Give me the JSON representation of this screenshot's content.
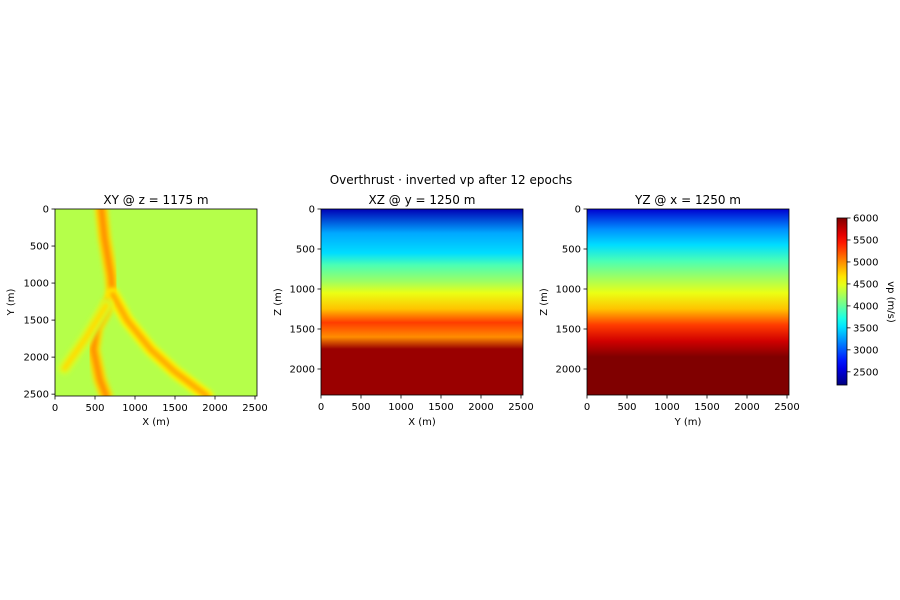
{
  "suptitle": "Overthrust · inverted vp after 12 epochs",
  "chart_data": [
    {
      "type": "heatmap",
      "title": "XY @ z = 1175 m",
      "xlabel": "X (m)",
      "ylabel": "Y (m)",
      "xlim": [
        0,
        2525
      ],
      "ylim": [
        2525,
        0
      ],
      "xticks": [
        0,
        500,
        1000,
        1500,
        2000,
        2500
      ],
      "yticks": [
        0,
        500,
        1000,
        1500,
        2000,
        2500
      ],
      "background_vp": 4300,
      "features": [
        {
          "kind": "channel",
          "vp": 5000,
          "path": [
            [
              580,
              0
            ],
            [
              620,
              400
            ],
            [
              700,
              900
            ],
            [
              720,
              1150
            ],
            [
              620,
              1400
            ],
            [
              520,
              1600
            ],
            [
              480,
              1900
            ],
            [
              560,
              2300
            ],
            [
              640,
              2525
            ]
          ]
        },
        {
          "kind": "channel",
          "vp": 4900,
          "path": [
            [
              720,
              1150
            ],
            [
              900,
              1500
            ],
            [
              1200,
              1900
            ],
            [
              1500,
              2200
            ],
            [
              1900,
              2525
            ]
          ]
        },
        {
          "kind": "channel",
          "vp": 4700,
          "path": [
            [
              640,
              1300
            ],
            [
              380,
              1750
            ],
            [
              120,
              2150
            ]
          ]
        }
      ]
    },
    {
      "type": "heatmap",
      "title": "XZ @ y = 1250 m",
      "xlabel": "X (m)",
      "ylabel": "Z (m)",
      "xlim": [
        0,
        2525
      ],
      "ylim": [
        2325,
        0
      ],
      "xticks": [
        0,
        500,
        1000,
        1500,
        2000,
        2500
      ],
      "yticks": [
        0,
        500,
        1000,
        1500,
        2000
      ],
      "layers": [
        {
          "z_top": 0,
          "vp": 2400
        },
        {
          "z_top": 300,
          "vp": 3300
        },
        {
          "z_top": 550,
          "vp": 3500
        },
        {
          "z_top": 700,
          "vp": 3900
        },
        {
          "z_top": 900,
          "vp": 4200
        },
        {
          "z_top": 1050,
          "vp": 4500
        },
        {
          "z_top": 1250,
          "vp": 4800
        },
        {
          "z_top": 1420,
          "vp": 5300
        },
        {
          "z_top": 1600,
          "vp": 5000
        },
        {
          "z_top": 1750,
          "vp": 5900
        }
      ]
    },
    {
      "type": "heatmap",
      "title": "YZ @ x = 1250 m",
      "xlabel": "Y (m)",
      "ylabel": "Z (m)",
      "xlim": [
        0,
        2525
      ],
      "ylim": [
        2325,
        0
      ],
      "xticks": [
        0,
        500,
        1000,
        1500,
        2000,
        2500
      ],
      "yticks": [
        0,
        500,
        1000,
        1500,
        2000
      ],
      "layers": [
        {
          "z_top": 0,
          "vp": 2500
        },
        {
          "z_top": 250,
          "vp": 3200
        },
        {
          "z_top": 450,
          "vp": 3500
        },
        {
          "z_top": 650,
          "vp": 3900
        },
        {
          "z_top": 850,
          "vp": 4200
        },
        {
          "z_top": 1050,
          "vp": 4500
        },
        {
          "z_top": 1250,
          "vp": 4800
        },
        {
          "z_top": 1450,
          "vp": 5300
        },
        {
          "z_top": 1650,
          "vp": 5700
        },
        {
          "z_top": 1850,
          "vp": 6000
        }
      ]
    }
  ],
  "colorbar": {
    "label": "vp (m/s)",
    "range": [
      2200,
      6000
    ],
    "ticks": [
      2500,
      3000,
      3500,
      4000,
      4500,
      5000,
      5500,
      6000
    ],
    "colormap": "jet"
  }
}
